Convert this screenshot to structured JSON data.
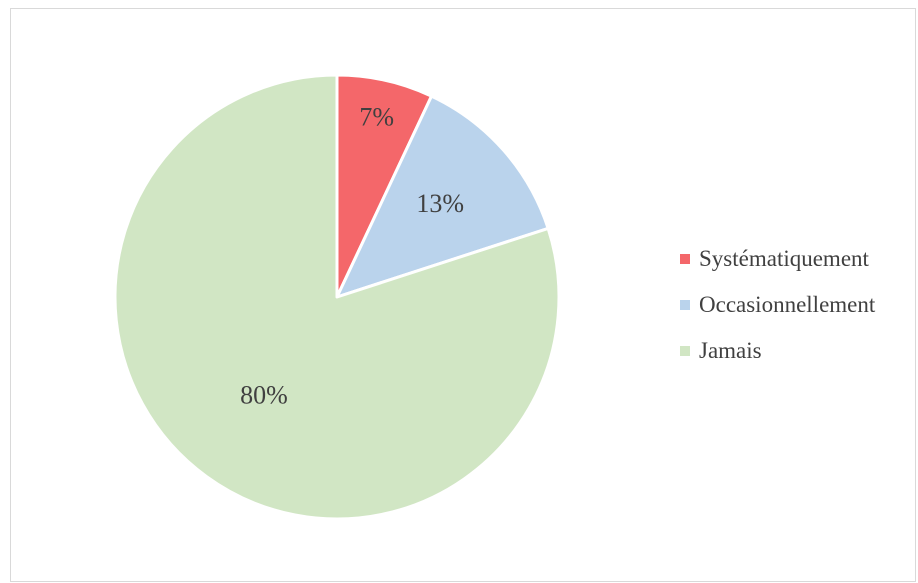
{
  "chart_data": {
    "type": "pie",
    "title": "",
    "categories": [
      "Systématiquement",
      "Occasionnellement",
      "Jamais"
    ],
    "values": [
      7,
      13,
      80
    ],
    "labels": [
      "7%",
      "13%",
      "80%"
    ],
    "colors": [
      "#f4676a",
      "#bad3ec",
      "#d1e6c4"
    ],
    "start_angle": "12 o'clock",
    "direction": "clockwise",
    "legend_position": "right"
  },
  "legend": {
    "items": [
      {
        "label": "Systématiquement",
        "color": "#f4676a"
      },
      {
        "label": "Occasionnellement",
        "color": "#bad3ec"
      },
      {
        "label": "Jamais",
        "color": "#d1e6c4"
      }
    ]
  }
}
